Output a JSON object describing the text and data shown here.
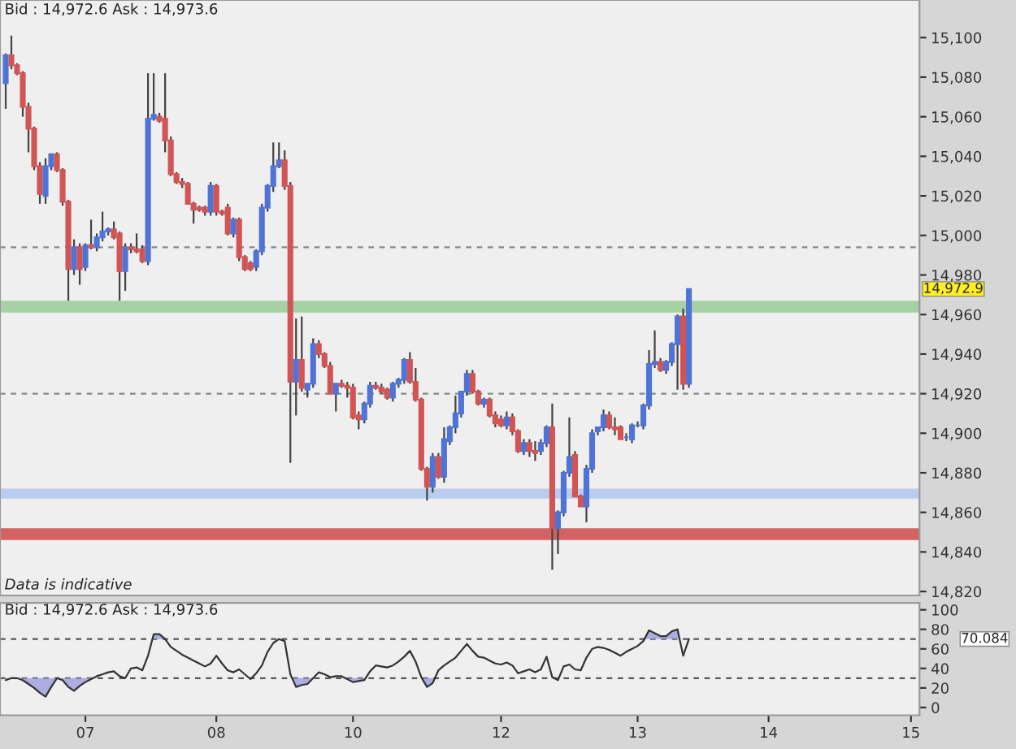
{
  "chart_data": [
    {
      "type": "candlestick",
      "annotations": [
        "Bid : 14,972.6 Ask : 14,973.6",
        "Data is indicative",
        "14,972.9"
      ],
      "categories": [
        null,
        null,
        null,
        null,
        null,
        null,
        null,
        null,
        null,
        null,
        null,
        null,
        null,
        null,
        "07",
        null,
        null,
        null,
        null,
        null,
        null,
        null,
        null,
        null,
        null,
        null,
        null,
        null,
        null,
        null,
        null,
        null,
        null,
        null,
        null,
        null,
        null,
        "08",
        null,
        null,
        null,
        null,
        null,
        null,
        null,
        null,
        null,
        null,
        null,
        null,
        null,
        null,
        null,
        null,
        null,
        null,
        null,
        null,
        null,
        null,
        null,
        "10",
        null,
        null,
        null,
        null,
        null,
        null,
        null,
        null,
        null,
        null,
        null,
        null,
        null,
        null,
        null,
        null,
        null,
        null,
        null,
        null,
        null,
        null,
        null,
        null,
        null,
        "12",
        null,
        null,
        null,
        null,
        null,
        null,
        null,
        null,
        null,
        null,
        null,
        null,
        null,
        null,
        null,
        null,
        null,
        null,
        null,
        null,
        null,
        null,
        null,
        "13",
        null,
        null,
        null,
        null,
        null,
        null,
        null,
        null,
        null,
        null,
        null,
        null,
        null,
        null,
        null,
        null,
        null,
        null,
        null,
        null,
        null,
        null,
        "14",
        null,
        null,
        null,
        null,
        null,
        null,
        null,
        null,
        null,
        null,
        null,
        null,
        null,
        null,
        null,
        null,
        null,
        null,
        null,
        null,
        null,
        null,
        null,
        null,
        "15",
        null
      ],
      "ohlc": [
        [
          15077,
          15092,
          15064,
          15091
        ],
        [
          15091,
          15101,
          15084,
          15086
        ],
        [
          15086,
          15087,
          15081,
          15082
        ],
        [
          15082,
          15083,
          15060,
          15065
        ],
        [
          15065,
          15067,
          15042,
          15054
        ],
        [
          15054,
          15055,
          15033,
          15035
        ],
        [
          15035,
          15037,
          15016,
          15021
        ],
        [
          15020,
          15039,
          15016,
          15035
        ],
        [
          15035,
          15041,
          15033,
          15041
        ],
        [
          15041,
          15042,
          15032,
          15033
        ],
        [
          15033,
          15034,
          15015,
          15017
        ],
        [
          15017,
          15018,
          14967,
          14983
        ],
        [
          14983,
          14998,
          14980,
          14994
        ],
        [
          14994,
          14996,
          14975,
          14983
        ],
        [
          14984,
          14996,
          14982,
          14995
        ],
        [
          14995,
          15008,
          14993,
          14994
        ],
        [
          14994,
          15001,
          14992,
          14999
        ],
        [
          14999,
          15012,
          14997,
          15002
        ],
        [
          15002,
          15004,
          15000,
          15003
        ],
        [
          15003,
          15007,
          14998,
          14999
        ],
        [
          15001,
          15002,
          14967,
          14982
        ],
        [
          14982,
          14996,
          14972,
          14994
        ],
        [
          14994,
          14996,
          14991,
          14993
        ],
        [
          14993,
          15001,
          14991,
          14992
        ],
        [
          14993,
          14995,
          14986,
          14987
        ],
        [
          14987,
          15082,
          14985,
          15059
        ],
        [
          15059,
          15082,
          15058,
          15061
        ],
        [
          15060,
          15062,
          15057,
          15058
        ],
        [
          15059,
          15082,
          15042,
          15048
        ],
        [
          15048,
          15050,
          15030,
          15031
        ],
        [
          15031,
          15032,
          15026,
          15027
        ],
        [
          15027,
          15029,
          15024,
          15026
        ],
        [
          15026,
          15027,
          15016,
          15016
        ],
        [
          15016,
          15017,
          15006,
          15013
        ],
        [
          15014,
          15015,
          15012,
          15013
        ],
        [
          15014,
          15015,
          15010,
          15012
        ],
        [
          15012,
          15027,
          15010,
          15025
        ],
        [
          15025,
          15026,
          15010,
          15012
        ],
        [
          15012,
          15013,
          15010,
          15011
        ],
        [
          15014,
          15016,
          15000,
          15001
        ],
        [
          15001,
          15009,
          14999,
          15008
        ],
        [
          15008,
          15009,
          14987,
          14989
        ],
        [
          14989,
          14990,
          14982,
          14983
        ],
        [
          14986,
          14987,
          14982,
          14983
        ],
        [
          14984,
          14993,
          14982,
          14992
        ],
        [
          14992,
          15016,
          14990,
          15014
        ],
        [
          15014,
          15026,
          15012,
          15025
        ],
        [
          15025,
          15047,
          15022,
          15035
        ],
        [
          15035,
          15047,
          15034,
          15038
        ],
        [
          15038,
          15043,
          15023,
          15025
        ],
        [
          15025,
          15027,
          14885,
          14926
        ],
        [
          14926,
          14958,
          14909,
          14937
        ],
        [
          14937,
          14959,
          14921,
          14923
        ],
        [
          14922,
          14925,
          14918,
          14925
        ],
        [
          14925,
          14948,
          14923,
          14945
        ],
        [
          14945,
          14947,
          14938,
          14940
        ],
        [
          14940,
          14941,
          14933,
          14934
        ],
        [
          14934,
          14936,
          14920,
          14920
        ],
        [
          14920,
          14925,
          14911,
          14925
        ],
        [
          14925,
          14927,
          14923,
          14924
        ],
        [
          14924,
          14926,
          14918,
          14923
        ],
        [
          14923,
          14925,
          14907,
          14908
        ],
        [
          14909,
          14911,
          14902,
          14907
        ],
        [
          14907,
          14916,
          14905,
          14915
        ],
        [
          14915,
          14926,
          14913,
          14924
        ],
        [
          14924,
          14926,
          14922,
          14923
        ],
        [
          14923,
          14925,
          14920,
          14921
        ],
        [
          14922,
          14923,
          14917,
          14918
        ],
        [
          14918,
          14926,
          14916,
          14925
        ],
        [
          14925,
          14928,
          14923,
          14927
        ],
        [
          14927,
          14938,
          14925,
          14937
        ],
        [
          14937,
          14941,
          14925,
          14926
        ],
        [
          14926,
          14933,
          14916,
          14917
        ],
        [
          14917,
          14918,
          14881,
          14882
        ],
        [
          14882,
          14883,
          14866,
          14873
        ],
        [
          14873,
          14890,
          14870,
          14888
        ],
        [
          14888,
          14890,
          14877,
          14878
        ],
        [
          14878,
          14903,
          14875,
          14897
        ],
        [
          14896,
          14904,
          14894,
          14903
        ],
        [
          14903,
          14919,
          14900,
          14910
        ],
        [
          14910,
          14921,
          14908,
          14921
        ],
        [
          14921,
          14932,
          14919,
          14930
        ],
        [
          14930,
          14932,
          14920,
          14921
        ],
        [
          14921,
          14922,
          14914,
          14915
        ],
        [
          14915,
          14918,
          14913,
          14917
        ],
        [
          14917,
          14918,
          14908,
          14909
        ],
        [
          14909,
          14911,
          14903,
          14905
        ],
        [
          14907,
          14909,
          14903,
          14904
        ],
        [
          14904,
          14911,
          14902,
          14908
        ],
        [
          14908,
          14910,
          14899,
          14901
        ],
        [
          14901,
          14902,
          14890,
          14891
        ],
        [
          14891,
          14897,
          14889,
          14895
        ],
        [
          14895,
          14897,
          14888,
          14891
        ],
        [
          14891,
          14896,
          14886,
          14890
        ],
        [
          14891,
          14897,
          14889,
          14895
        ],
        [
          14895,
          14904,
          14893,
          14903
        ],
        [
          14903,
          14915,
          14831,
          14852
        ],
        [
          14852,
          14861,
          14839,
          14860
        ],
        [
          14860,
          14881,
          14858,
          14880
        ],
        [
          14880,
          14908,
          14878,
          14888
        ],
        [
          14889,
          14891,
          14868,
          14868
        ],
        [
          14868,
          14869,
          14863,
          14863
        ],
        [
          14863,
          14884,
          14855,
          14882
        ],
        [
          14882,
          14902,
          14880,
          14900
        ],
        [
          14901,
          14903,
          14899,
          14903
        ],
        [
          14903,
          14912,
          14901,
          14909
        ],
        [
          14909,
          14911,
          14902,
          14903
        ],
        [
          14903,
          14908,
          14899,
          14902
        ],
        [
          14903,
          14904,
          14897,
          14897
        ],
        [
          14898,
          14900,
          14896,
          14898
        ],
        [
          14897,
          14905,
          14895,
          14904
        ],
        [
          14904,
          14906,
          14903,
          14904
        ],
        [
          14904,
          14915,
          14902,
          14914
        ],
        [
          14914,
          14942,
          14912,
          14935
        ],
        [
          14935,
          14952,
          14933,
          14936
        ],
        [
          14936,
          14938,
          14931,
          14932
        ],
        [
          14932,
          14937,
          14930,
          14936
        ],
        [
          14936,
          14946,
          14934,
          14945
        ],
        [
          14945,
          14960,
          14922,
          14959
        ],
        [
          14959,
          14963,
          14922,
          14925
        ],
        [
          14925,
          14973,
          14923,
          14972.9
        ],
        null,
        null,
        null,
        null,
        null,
        null,
        null,
        null,
        null,
        null,
        null,
        null,
        null,
        null,
        null,
        null,
        null,
        null,
        null,
        null,
        null,
        null,
        null,
        null,
        null,
        null,
        null,
        null,
        null,
        null,
        null,
        null,
        null,
        null,
        null,
        null,
        null,
        null,
        null,
        null
      ],
      "ylim": [
        14818,
        15119
      ],
      "yticks": [
        {
          "value": 14820,
          "label": "14,820"
        },
        {
          "value": 14840,
          "label": "14,840"
        },
        {
          "value": 14860,
          "label": "14,860"
        },
        {
          "value": 14880,
          "label": "14,880"
        },
        {
          "value": 14900,
          "label": "14,900"
        },
        {
          "value": 14920,
          "label": "14,920"
        },
        {
          "value": 14940,
          "label": "14,940"
        },
        {
          "value": 14960,
          "label": "14,960"
        },
        {
          "value": 14980,
          "label": "14,980"
        },
        {
          "value": 15000,
          "label": "15,000"
        },
        {
          "value": 15020,
          "label": "15,020"
        },
        {
          "value": 15040,
          "label": "15,040"
        },
        {
          "value": 15060,
          "label": "15,060"
        },
        {
          "value": 15080,
          "label": "15,080"
        },
        {
          "value": 15100,
          "label": "15,100"
        }
      ],
      "tick_labels": "y",
      "ref_lines": [
        {
          "axis": "y",
          "value": 14994,
          "color": "#888888",
          "line_style": "dashed"
        },
        {
          "axis": "y",
          "value": 14920,
          "color": "#888888",
          "line_style": "dashed"
        }
      ],
      "bands": [
        {
          "axis": "y",
          "from": 14961,
          "to": 14967,
          "color": "#8cc78c"
        },
        {
          "axis": "y",
          "from": 14867,
          "to": 14872,
          "color": "#a9c1ee"
        },
        {
          "axis": "y",
          "from": 14846,
          "to": 14852,
          "color": "#cc3333"
        }
      ],
      "grid": false
    },
    {
      "type": "line",
      "annotations": [
        "Bid : 14,972.6 Ask : 14,973.6",
        "70.084"
      ],
      "categories": [
        null,
        null,
        null,
        null,
        null,
        null,
        null,
        null,
        null,
        null,
        null,
        null,
        null,
        null,
        "07",
        null,
        null,
        null,
        null,
        null,
        null,
        null,
        null,
        null,
        null,
        null,
        null,
        null,
        null,
        null,
        null,
        null,
        null,
        null,
        null,
        null,
        null,
        "08",
        null,
        null,
        null,
        null,
        null,
        null,
        null,
        null,
        null,
        null,
        null,
        null,
        null,
        null,
        null,
        null,
        null,
        null,
        null,
        null,
        null,
        null,
        null,
        "10",
        null,
        null,
        null,
        null,
        null,
        null,
        null,
        null,
        null,
        null,
        null,
        null,
        null,
        null,
        null,
        null,
        null,
        null,
        null,
        null,
        null,
        null,
        null,
        null,
        null,
        "12",
        null,
        null,
        null,
        null,
        null,
        null,
        null,
        null,
        null,
        null,
        null,
        null,
        null,
        null,
        null,
        null,
        null,
        null,
        null,
        null,
        null,
        null,
        null,
        "13",
        null,
        null,
        null,
        null,
        null,
        null,
        null,
        null,
        null,
        null,
        null,
        null,
        null,
        null,
        null,
        null,
        null,
        null,
        null,
        null,
        null,
        null,
        "14",
        null,
        null,
        null,
        null,
        null,
        null,
        null,
        null,
        null,
        null,
        null,
        null,
        null,
        null,
        null,
        null,
        null,
        null,
        null,
        null,
        null,
        null,
        null,
        null,
        "15",
        null
      ],
      "series": [
        {
          "color": "#333333",
          "values": [
            28,
            30,
            30,
            28,
            24,
            20,
            15,
            11,
            21,
            30,
            28,
            21,
            17,
            22,
            26,
            29,
            32,
            34,
            36,
            37,
            32,
            30,
            40,
            41,
            38,
            53,
            75,
            75,
            70,
            62,
            58,
            54,
            51,
            48,
            45,
            42,
            45,
            53,
            45,
            38,
            36,
            39,
            34,
            29,
            35,
            43,
            57,
            66,
            70,
            68,
            34,
            21,
            23,
            24,
            30,
            36,
            34,
            31,
            32,
            32,
            29,
            26,
            27,
            28,
            37,
            43,
            42,
            41,
            43,
            47,
            52,
            58,
            47,
            31,
            21,
            25,
            38,
            43,
            47,
            51,
            58,
            65,
            58,
            52,
            51,
            48,
            45,
            44,
            46,
            43,
            35,
            37,
            39,
            36,
            39,
            52,
            31,
            28,
            42,
            44,
            39,
            38,
            51,
            60,
            62,
            61,
            59,
            56,
            53,
            57,
            60,
            63,
            68,
            79,
            76,
            73,
            73,
            78,
            80,
            53,
            70.084,
            null,
            null,
            null,
            null,
            null,
            null,
            null,
            null,
            null,
            null,
            null,
            null,
            null,
            null,
            null,
            null,
            null,
            null,
            null,
            null,
            null,
            null,
            null,
            null,
            null,
            null,
            null,
            null,
            null,
            null,
            null,
            null,
            null,
            null,
            null,
            null,
            null,
            null,
            null,
            null
          ]
        }
      ],
      "ylim": [
        -8,
        107
      ],
      "yticks": [
        0,
        20,
        40,
        60,
        80,
        100
      ],
      "ref_lines": [
        {
          "axis": "y",
          "value": 70,
          "color": "#555555",
          "line_style": "dashed"
        },
        {
          "axis": "y",
          "value": 30,
          "color": "#555555",
          "line_style": "dashed"
        }
      ],
      "grid": false
    }
  ]
}
